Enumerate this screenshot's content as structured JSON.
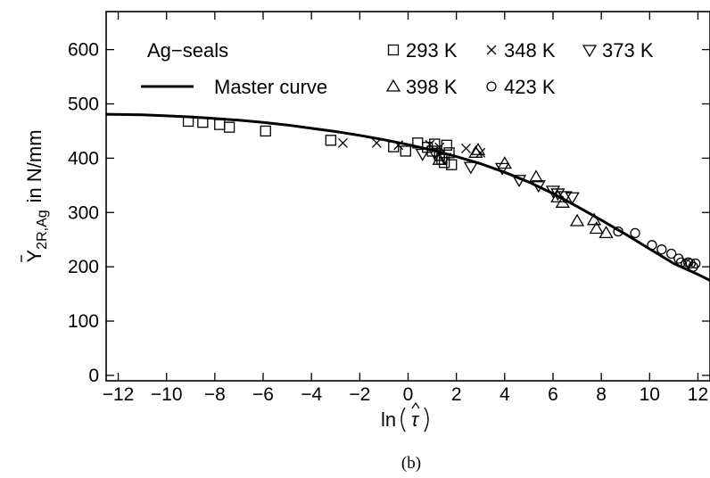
{
  "chart_data": {
    "type": "scatter",
    "caption": "(b)",
    "xlabel_text": "ln",
    "xlabel_symbol": "τ",
    "ylabel_main": "Y",
    "ylabel_sub": "2R,Ag",
    "ylabel_unit": "in N/mm",
    "xlim": [
      -12.5,
      12.5
    ],
    "ylim": [
      -10,
      670
    ],
    "x_ticks": [
      -12,
      -10,
      -8,
      -6,
      -4,
      -2,
      0,
      2,
      4,
      6,
      8,
      10,
      12
    ],
    "x_tick_labels": [
      "−12",
      "−10",
      "−8",
      "−6",
      "−4",
      "−2",
      "0",
      "2",
      "4",
      "6",
      "8",
      "10",
      "12"
    ],
    "y_ticks": [
      0,
      100,
      200,
      300,
      400,
      500,
      600
    ],
    "y_tick_labels": [
      "0",
      "100",
      "200",
      "300",
      "400",
      "500",
      "600"
    ],
    "legend": {
      "title": "Ag−seals",
      "line_label": "Master curve",
      "entries": [
        {
          "label": "293 K",
          "marker": "square"
        },
        {
          "label": "348 K",
          "marker": "cross"
        },
        {
          "label": "373 K",
          "marker": "triangle-down"
        },
        {
          "label": "398 K",
          "marker": "triangle-up"
        },
        {
          "label": "423 K",
          "marker": "circle"
        }
      ]
    },
    "master_curve": {
      "x": [
        -12.5,
        -11,
        -10,
        -9,
        -8,
        -7,
        -6,
        -5,
        -4,
        -3,
        -2,
        -1,
        0,
        1,
        2,
        3,
        4,
        5,
        6,
        7,
        8,
        9,
        10,
        11,
        12,
        12.5
      ],
      "y": [
        481,
        480,
        478,
        476,
        473,
        470,
        466,
        461,
        455,
        449,
        442,
        434,
        425,
        415,
        403,
        390,
        374,
        356,
        335,
        311,
        286,
        260,
        233,
        206,
        186,
        175
      ]
    },
    "series": [
      {
        "name": "293 K",
        "marker": "square",
        "x": [
          -9.1,
          -8.5,
          -7.8,
          -7.4,
          -5.9,
          -3.2,
          -0.6,
          -0.1,
          0.4,
          0.8,
          1.0,
          1.1,
          1.3,
          1.4,
          1.5,
          1.6,
          1.7,
          1.8
        ],
        "y": [
          468,
          466,
          462,
          457,
          450,
          433,
          421,
          413,
          428,
          420,
          413,
          426,
          405,
          398,
          392,
          424,
          410,
          388
        ]
      },
      {
        "name": "348 K",
        "marker": "cross",
        "x": [
          -2.7,
          -1.3,
          -0.4,
          0.9,
          1.3,
          2.4,
          3.0
        ],
        "y": [
          428,
          428,
          424,
          425,
          420,
          418,
          410
        ]
      },
      {
        "name": "373 K",
        "marker": "triangle-down",
        "x": [
          0.6,
          1.1,
          1.5,
          2.6,
          3.9,
          4.6,
          5.4,
          6.0,
          6.2,
          6.5,
          6.8
        ],
        "y": [
          408,
          410,
          400,
          384,
          382,
          360,
          350,
          340,
          335,
          330,
          328
        ]
      },
      {
        "name": "398 K",
        "marker": "triangle-up",
        "x": [
          1.3,
          2.8,
          2.9,
          4.0,
          5.3,
          6.2,
          6.4,
          7.0,
          7.7,
          7.8,
          8.2
        ],
        "y": [
          397,
          410,
          415,
          390,
          365,
          328,
          318,
          284,
          286,
          270,
          262
        ]
      },
      {
        "name": "423 K",
        "marker": "circle",
        "x": [
          8.7,
          9.4,
          10.1,
          10.5,
          10.9,
          11.2,
          11.3,
          11.5,
          11.6,
          11.7,
          11.8,
          11.9
        ],
        "y": [
          265,
          262,
          240,
          232,
          224,
          215,
          208,
          205,
          208,
          206,
          200,
          206
        ]
      }
    ]
  }
}
